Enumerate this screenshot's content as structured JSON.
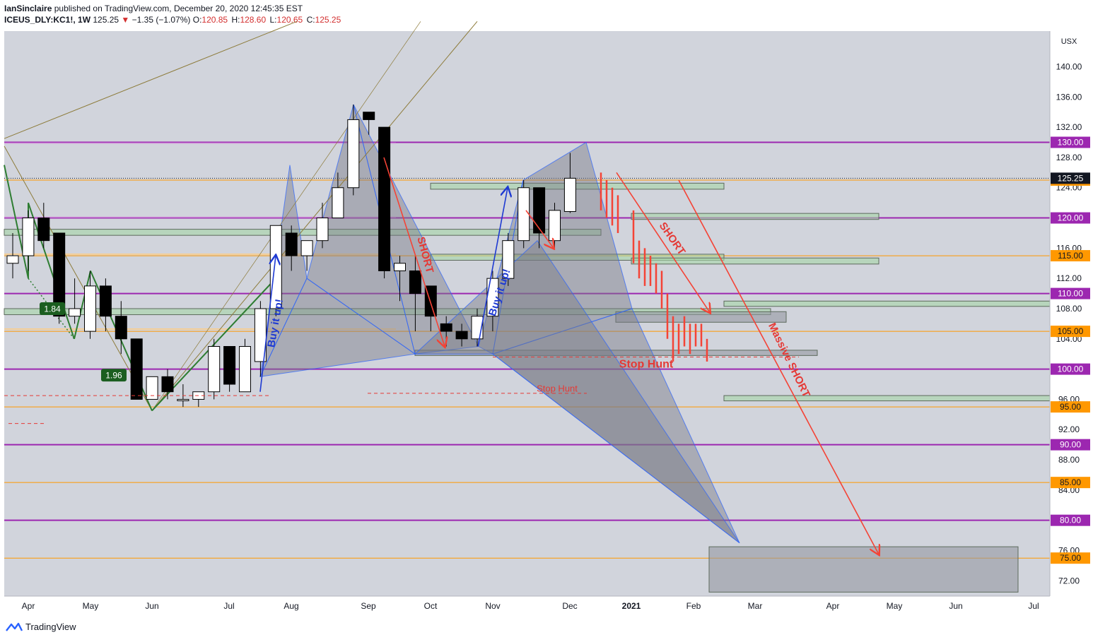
{
  "header": {
    "author": "IanSinclaire",
    "published_text": "published on TradingView.com, December 20, 2020 12:45:35 EST",
    "symbol": "ICEUS_DLY:KC1!, 1W",
    "price": "125.25",
    "change": "−1.35 (−1.07%)",
    "o_label": "O:",
    "o_value": "120.85",
    "h_label": "H:",
    "h_value": "128.60",
    "l_label": "L:",
    "l_value": "120.65",
    "c_label": "C:",
    "c_value": "125.25"
  },
  "footer": {
    "brand": "TradingView"
  },
  "colors": {
    "background": "#d1d4dc",
    "up_candle": "#ffffff",
    "down_candle": "#000000",
    "purple_line": "#9c27b0",
    "orange_line": "#ff9800",
    "zone_fill": "#a5d6a7",
    "pattern_fill": "#787b86",
    "arrow_red": "#f44336",
    "arrow_blue": "#1e3ad2",
    "text_red": "#e53935",
    "price_tag": "#ff9800"
  },
  "chart_data": {
    "type": "candlestick",
    "y_unit": "USX",
    "ylim": [
      70,
      145
    ],
    "y_ticks": [
      "72.00",
      "76.00",
      "80.00",
      "84.00",
      "88.00",
      "92.00",
      "96.00",
      "100.00",
      "104.00",
      "108.00",
      "112.00",
      "116.00",
      "120.00",
      "124.00",
      "128.00",
      "132.00",
      "136.00",
      "140.00"
    ],
    "x_ticks": [
      {
        "label": "Apr",
        "pos": 40
      },
      {
        "label": "May",
        "pos": 128
      },
      {
        "label": "Jun",
        "pos": 215
      },
      {
        "label": "Jul",
        "pos": 324
      },
      {
        "label": "Aug",
        "pos": 412
      },
      {
        "label": "Sep",
        "pos": 521
      },
      {
        "label": "Oct",
        "pos": 609
      },
      {
        "label": "Nov",
        "pos": 697
      },
      {
        "label": "Dec",
        "pos": 806
      },
      {
        "label": "2021",
        "pos": 893
      },
      {
        "label": "Feb",
        "pos": 981
      },
      {
        "label": "Mar",
        "pos": 1068
      },
      {
        "label": "Apr",
        "pos": 1178
      },
      {
        "label": "May",
        "pos": 1265
      },
      {
        "label": "Jun",
        "pos": 1352
      },
      {
        "label": "Jul",
        "pos": 1462
      }
    ],
    "candles": [
      {
        "o": 114,
        "h": 118,
        "l": 112,
        "c": 115
      },
      {
        "o": 115,
        "h": 121,
        "l": 113,
        "c": 120
      },
      {
        "o": 120,
        "h": 122,
        "l": 116,
        "c": 117
      },
      {
        "o": 118,
        "h": 118,
        "l": 106,
        "c": 107
      },
      {
        "o": 107,
        "h": 112,
        "l": 106,
        "c": 108
      },
      {
        "o": 105,
        "h": 113,
        "l": 104,
        "c": 111
      },
      {
        "o": 111,
        "h": 112,
        "l": 105,
        "c": 107
      },
      {
        "o": 107,
        "h": 109,
        "l": 102,
        "c": 104
      },
      {
        "o": 104,
        "h": 104,
        "l": 96,
        "c": 96
      },
      {
        "o": 96,
        "h": 99,
        "l": 96,
        "c": 99
      },
      {
        "o": 99,
        "h": 100,
        "l": 96,
        "c": 97
      },
      {
        "o": 96,
        "h": 98,
        "l": 95,
        "c": 96
      },
      {
        "o": 96,
        "h": 97,
        "l": 95,
        "c": 97
      },
      {
        "o": 97,
        "h": 104,
        "l": 96,
        "c": 103
      },
      {
        "o": 103,
        "h": 103,
        "l": 97,
        "c": 98
      },
      {
        "o": 97,
        "h": 104,
        "l": 97,
        "c": 103
      },
      {
        "o": 101,
        "h": 109,
        "l": 99,
        "c": 108
      },
      {
        "o": 108,
        "h": 119,
        "l": 107,
        "c": 119
      },
      {
        "o": 118,
        "h": 119,
        "l": 113,
        "c": 115
      },
      {
        "o": 115,
        "h": 117,
        "l": 113,
        "c": 117
      },
      {
        "o": 117,
        "h": 122,
        "l": 116,
        "c": 120
      },
      {
        "o": 120,
        "h": 126,
        "l": 120,
        "c": 124
      },
      {
        "o": 124,
        "h": 135,
        "l": 123,
        "c": 133
      },
      {
        "o": 134,
        "h": 134,
        "l": 131,
        "c": 133
      },
      {
        "o": 132,
        "h": 132,
        "l": 112,
        "c": 113
      },
      {
        "o": 113,
        "h": 115,
        "l": 109,
        "c": 114
      },
      {
        "o": 113,
        "h": 115,
        "l": 105,
        "c": 110
      },
      {
        "o": 111,
        "h": 111,
        "l": 105,
        "c": 107
      },
      {
        "o": 106,
        "h": 107,
        "l": 103,
        "c": 105
      },
      {
        "o": 105,
        "h": 106,
        "l": 103,
        "c": 104
      },
      {
        "o": 104,
        "h": 108,
        "l": 103,
        "c": 107
      },
      {
        "o": 107,
        "h": 113,
        "l": 105,
        "c": 112
      },
      {
        "o": 112,
        "h": 118,
        "l": 111,
        "c": 117
      },
      {
        "o": 117,
        "h": 125,
        "l": 116,
        "c": 124
      },
      {
        "o": 124,
        "h": 124,
        "l": 116,
        "c": 118
      },
      {
        "o": 117,
        "h": 122,
        "l": 116,
        "c": 121
      },
      {
        "o": 120.85,
        "h": 128.6,
        "l": 120.65,
        "c": 125.25
      }
    ],
    "horizontal_levels": [
      {
        "label": "130.00",
        "value": 130,
        "color": "purple"
      },
      {
        "label": "125.00",
        "value": 125,
        "color": "orange"
      },
      {
        "label": "120.00",
        "value": 120,
        "color": "purple"
      },
      {
        "label": "115.00",
        "value": 115,
        "color": "orange"
      },
      {
        "label": "110.00",
        "value": 110,
        "color": "purple"
      },
      {
        "label": "105.00",
        "value": 105,
        "color": "orange"
      },
      {
        "label": "100.00",
        "value": 100,
        "color": "purple"
      },
      {
        "label": "95.00",
        "value": 95,
        "color": "orange"
      },
      {
        "label": "90.00",
        "value": 90,
        "color": "purple"
      },
      {
        "label": "85.00",
        "value": 85,
        "color": "orange"
      },
      {
        "label": "80.00",
        "value": 80,
        "color": "purple"
      },
      {
        "label": "75.00",
        "value": 75,
        "color": "orange"
      }
    ],
    "last_price": "125.25",
    "annotations": {
      "short1": "SHORT",
      "buy1": "Buy it up!",
      "buy2": "Buy it up!",
      "short2": "SHORT",
      "massive_short": "Massive SHORT",
      "stop_hunt1": "Stop Hunt",
      "stop_hunt2": "Stop Hunt",
      "fib1": "1.84",
      "fib2": "1.96"
    }
  }
}
